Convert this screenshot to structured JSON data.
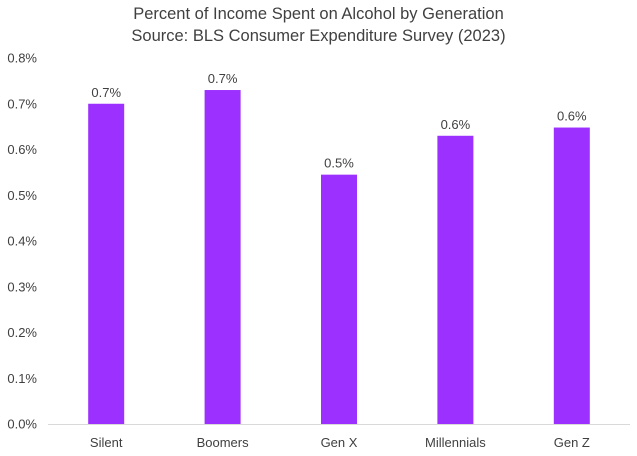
{
  "chart_data": {
    "type": "bar",
    "title": "Percent of Income Spent on Alcohol by Generation",
    "subtitle": "Source: BLS Consumer Expenditure Survey (2023)",
    "xlabel": "",
    "ylabel": "",
    "categories": [
      "Silent",
      "Boomers",
      "Gen X",
      "Millennials",
      "Gen Z"
    ],
    "values": [
      0.7,
      0.73,
      0.545,
      0.63,
      0.648
    ],
    "data_labels": [
      "0.7%",
      "0.7%",
      "0.5%",
      "0.6%",
      "0.6%"
    ],
    "ylim": [
      0,
      0.8
    ],
    "yticks": [
      "0.0%",
      "0.1%",
      "0.2%",
      "0.3%",
      "0.4%",
      "0.5%",
      "0.6%",
      "0.7%",
      "0.8%"
    ],
    "grid": false,
    "legend": "none",
    "bar_color": "#9B30FF"
  }
}
